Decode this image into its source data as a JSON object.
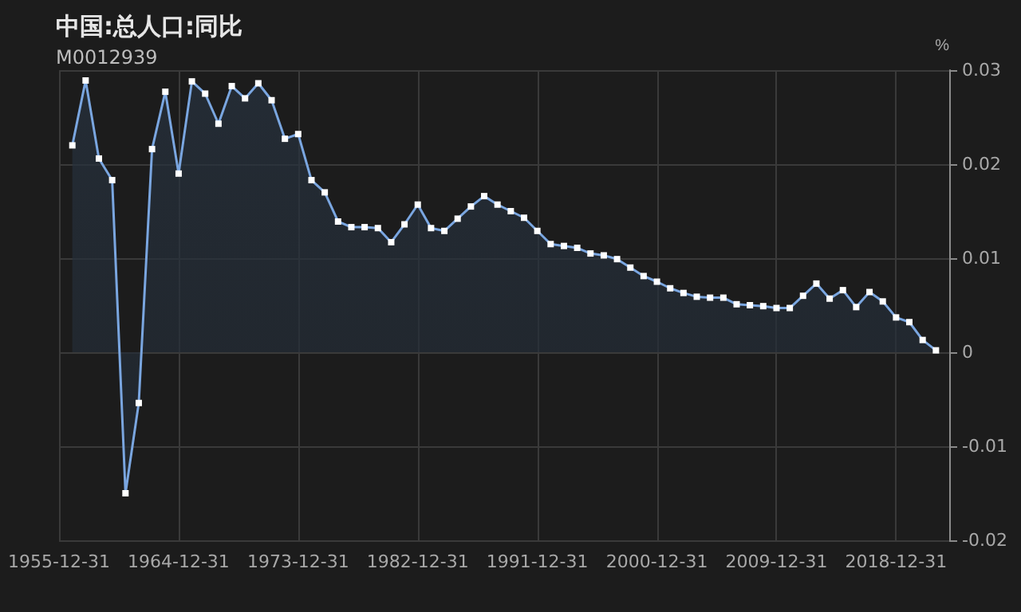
{
  "chart_data": {
    "type": "area",
    "title": "中国:总人口:同比",
    "subtitle": "M0012939",
    "ylabel": "%",
    "x": [
      "1956-12-31",
      "1957-12-31",
      "1958-12-31",
      "1959-12-31",
      "1960-12-31",
      "1961-12-31",
      "1962-12-31",
      "1963-12-31",
      "1964-12-31",
      "1965-12-31",
      "1966-12-31",
      "1967-12-31",
      "1968-12-31",
      "1969-12-31",
      "1970-12-31",
      "1971-12-31",
      "1972-12-31",
      "1973-12-31",
      "1974-12-31",
      "1975-12-31",
      "1976-12-31",
      "1977-12-31",
      "1978-12-31",
      "1979-12-31",
      "1980-12-31",
      "1981-12-31",
      "1982-12-31",
      "1983-12-31",
      "1984-12-31",
      "1985-12-31",
      "1986-12-31",
      "1987-12-31",
      "1988-12-31",
      "1989-12-31",
      "1990-12-31",
      "1991-12-31",
      "1992-12-31",
      "1993-12-31",
      "1994-12-31",
      "1995-12-31",
      "1996-12-31",
      "1997-12-31",
      "1998-12-31",
      "1999-12-31",
      "2000-12-31",
      "2001-12-31",
      "2002-12-31",
      "2003-12-31",
      "2004-12-31",
      "2005-12-31",
      "2006-12-31",
      "2007-12-31",
      "2008-12-31",
      "2009-12-31",
      "2010-12-31",
      "2011-12-31",
      "2012-12-31",
      "2013-12-31",
      "2014-12-31",
      "2015-12-31",
      "2016-12-31",
      "2017-12-31",
      "2018-12-31",
      "2019-12-31",
      "2020-12-31",
      "2021-12-31"
    ],
    "series": [
      {
        "color": "#7aa6e0",
        "values": [
          0.022,
          0.0289,
          0.0206,
          0.0183,
          -0.015,
          -0.0054,
          0.0216,
          0.0277,
          0.019,
          0.0288,
          0.0275,
          0.0243,
          0.0283,
          0.027,
          0.0286,
          0.0268,
          0.0227,
          0.0232,
          0.0183,
          0.017,
          0.0139,
          0.0133,
          0.0133,
          0.0132,
          0.0117,
          0.0136,
          0.0157,
          0.0132,
          0.0129,
          0.0142,
          0.0155,
          0.0166,
          0.0157,
          0.015,
          0.0143,
          0.0129,
          0.0115,
          0.0113,
          0.0111,
          0.0105,
          0.0103,
          0.0099,
          0.009,
          0.0081,
          0.0075,
          0.0068,
          0.0063,
          0.0059,
          0.0058,
          0.0058,
          0.0051,
          0.005,
          0.0049,
          0.0047,
          0.0047,
          0.006,
          0.0073,
          0.0057,
          0.0066,
          0.0048,
          0.0064,
          0.0054,
          0.0037,
          0.0032,
          0.0013,
          0.0002
        ]
      }
    ],
    "xlim": [
      "1955-12-31",
      "2022-12-31"
    ],
    "xticks": [
      "1955-12-31",
      "1964-12-31",
      "1973-12-31",
      "1982-12-31",
      "1991-12-31",
      "2000-12-31",
      "2009-12-31",
      "2018-12-31"
    ],
    "ylim": [
      -0.02,
      0.03
    ],
    "yticks": [
      -0.02,
      -0.01,
      0,
      0.01,
      0.02,
      0.03
    ],
    "grid": true,
    "marker": "square",
    "line_style": "solid"
  }
}
